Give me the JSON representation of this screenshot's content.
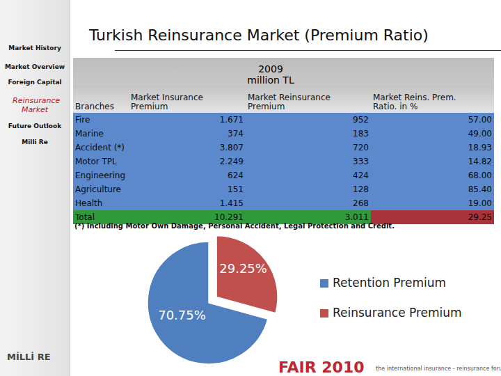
{
  "sidebar": [
    {
      "label": "Market History",
      "active": false
    },
    {
      "label": "Market Overview",
      "active": false
    },
    {
      "label": "Foreign Capital",
      "active": false
    },
    {
      "label": "Reinsurance Market",
      "active": true
    },
    {
      "label": "Future Outlook",
      "active": false
    },
    {
      "label": "Milli Re",
      "active": false
    }
  ],
  "title": "Turkish Reinsurance Market (Premium Ratio)",
  "table": {
    "caption": [
      "2009",
      "million TL"
    ],
    "columns": [
      "Branches",
      "Market Insurance Premium",
      "Market Reinsurance Premium",
      "Market Reins. Prem. Ratio. in %"
    ],
    "rows": [
      [
        "Fire",
        "1.671",
        "952",
        "57.00"
      ],
      [
        "Marine",
        "374",
        "183",
        "49.00"
      ],
      [
        "Accident (*)",
        "3.807",
        "720",
        "18.93"
      ],
      [
        "Motor TPL",
        "2.249",
        "333",
        "14.82"
      ],
      [
        "Engineering",
        "624",
        "424",
        "68.00"
      ],
      [
        "Agriculture",
        "151",
        "128",
        "85.40"
      ],
      [
        "Health",
        "1.415",
        "268",
        "19.00"
      ]
    ],
    "total": [
      "Total",
      "10.291",
      "3.011",
      "29.25"
    ]
  },
  "footnote": "(*) Including Motor Own Damage, Personal Accident, Legal Protection and Credit.",
  "chart_data": {
    "type": "pie",
    "categories": [
      "Retention Premium",
      "Reinsurance Premium"
    ],
    "values": [
      70.75,
      29.25
    ],
    "value_labels": [
      "70.75%",
      "29.25%"
    ],
    "colors": [
      "#4f7fbf",
      "#c0504d"
    ],
    "legend": "right",
    "data_labels": true
  },
  "logo": "MİLLİ RE",
  "footer": {
    "brand": "FAIR 2010",
    "tagline": "the international insurance - reinsurance forum"
  }
}
